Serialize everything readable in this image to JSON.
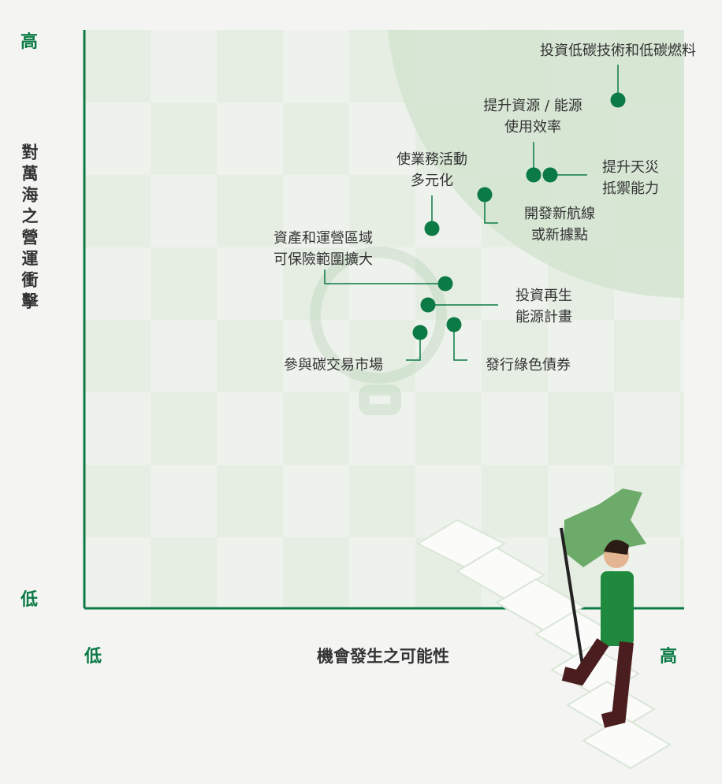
{
  "axes": {
    "y_high": "高",
    "y_title": "對萬海之營運衝擊",
    "y_low": "低",
    "x_low": "低",
    "x_title": "機會發生之可能性",
    "x_high": "高"
  },
  "items": [
    {
      "lines": [
        "投資低碳技術和低碳燃料"
      ]
    },
    {
      "lines": [
        "提升資源 / 能源",
        "使用效率"
      ]
    },
    {
      "lines": [
        "提升天災",
        "抵禦能力"
      ]
    },
    {
      "lines": [
        "使業務活動",
        "多元化"
      ]
    },
    {
      "lines": [
        "開發新航線",
        "或新據點"
      ]
    },
    {
      "lines": [
        "資產和運營區域",
        "可保險範圍擴大"
      ]
    },
    {
      "lines": [
        "投資再生",
        "能源計畫"
      ]
    },
    {
      "lines": [
        "參與碳交易市場"
      ]
    },
    {
      "lines": [
        "發行綠色債券"
      ]
    }
  ]
}
